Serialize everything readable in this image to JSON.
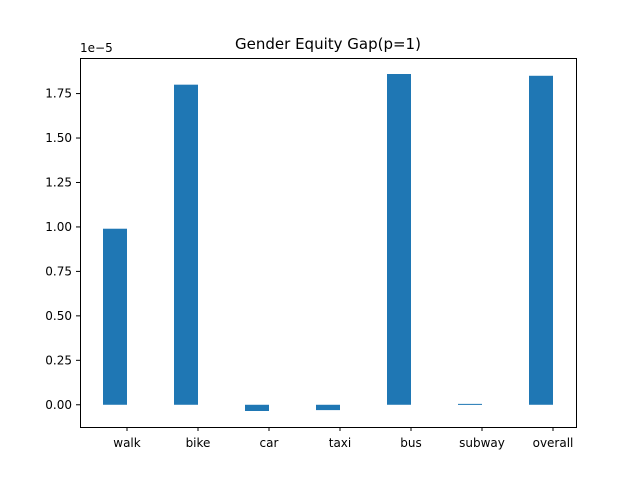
{
  "chart_data": {
    "type": "bar",
    "title": "Gender Equity Gap(p=1)",
    "xlabel": "",
    "ylabel": "",
    "y_offset_label": "1e−5",
    "categories": [
      "walk",
      "bike",
      "car",
      "taxi",
      "bus",
      "subway",
      "overall"
    ],
    "values": [
      0.99,
      1.8,
      -0.035,
      -0.03,
      1.86,
      0.005,
      1.85
    ],
    "value_scale": "1e-5",
    "ylim": [
      -0.125,
      1.95
    ],
    "yticks": [
      0.0,
      0.25,
      0.5,
      0.75,
      1.0,
      1.25,
      1.5,
      1.75
    ],
    "ytick_labels": [
      "0.00",
      "0.25",
      "0.50",
      "0.75",
      "1.00",
      "1.25",
      "1.50",
      "1.75"
    ],
    "grid": false,
    "legend": "none",
    "bar_color": "#1f77b4"
  }
}
